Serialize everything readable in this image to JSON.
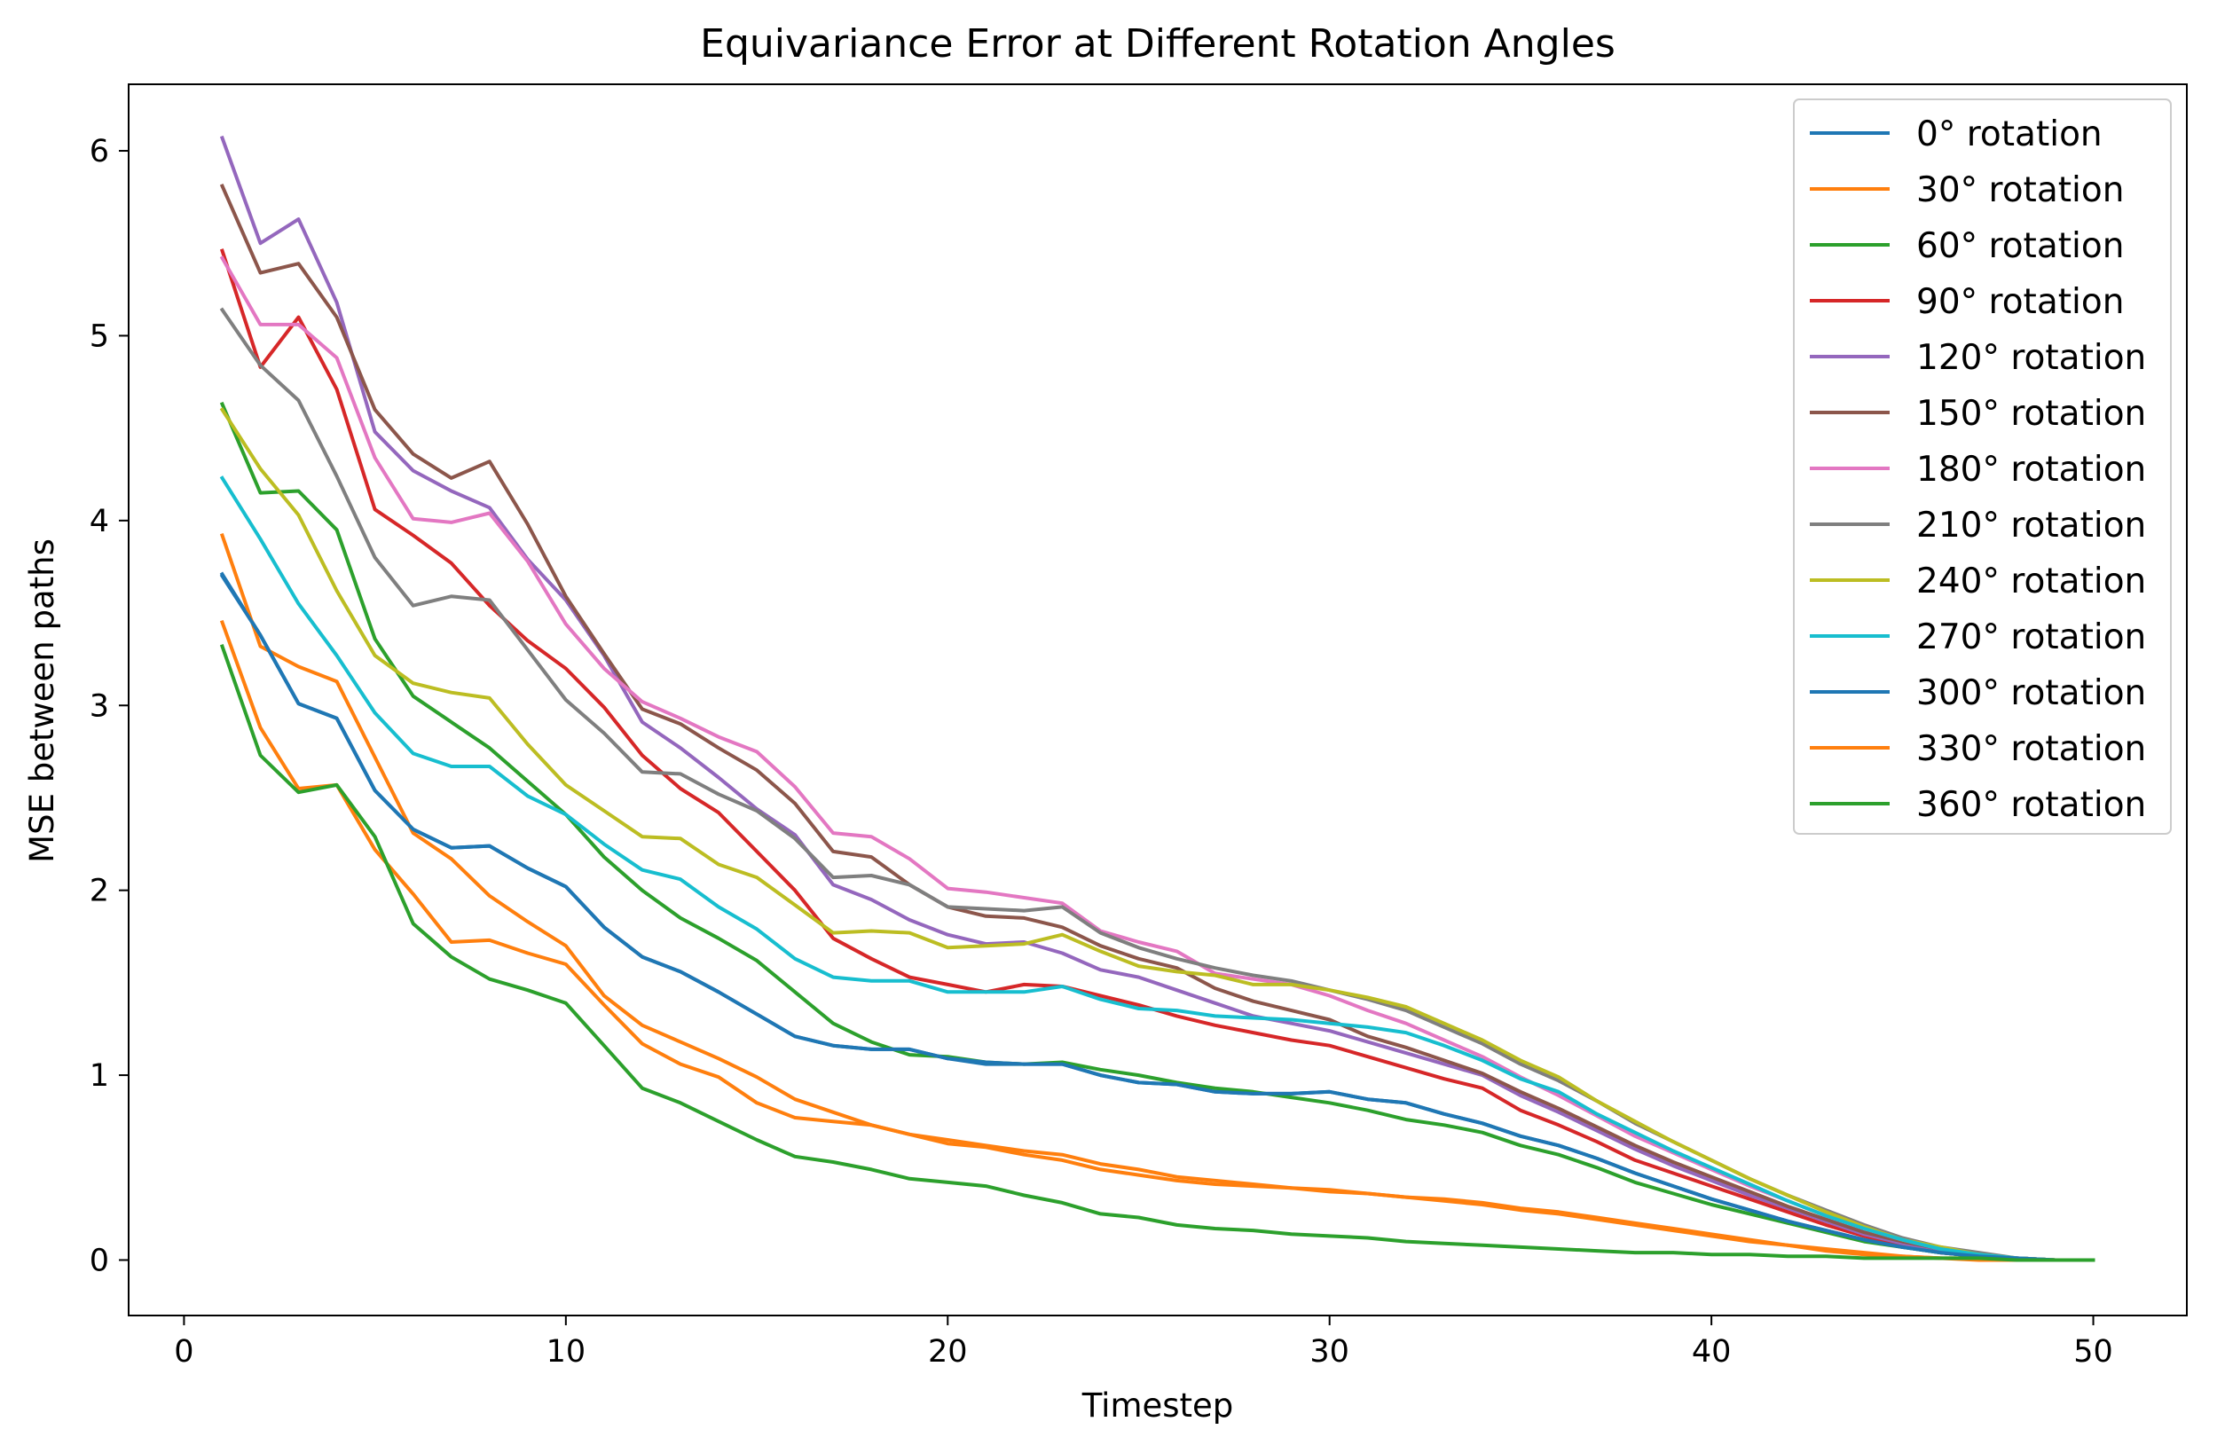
{
  "chart_data": {
    "type": "line",
    "title": "Equivariance Error at Different Rotation Angles",
    "xlabel": "Timestep",
    "ylabel": "MSE between paths",
    "xlim": [
      -1.45,
      52.45
    ],
    "ylim": [
      -0.3,
      6.36
    ],
    "xticks": [
      0,
      10,
      20,
      30,
      40,
      50
    ],
    "yticks": [
      0,
      1,
      2,
      3,
      4,
      5,
      6
    ],
    "grid": false,
    "legend_position": "top-right",
    "x": [
      1,
      2,
      3,
      4,
      5,
      6,
      7,
      8,
      9,
      10,
      11,
      12,
      13,
      14,
      15,
      16,
      17,
      18,
      19,
      20,
      21,
      22,
      23,
      24,
      25,
      26,
      27,
      28,
      29,
      30,
      31,
      32,
      33,
      34,
      35,
      36,
      37,
      38,
      39,
      40,
      41,
      42,
      43,
      44,
      45,
      46,
      47,
      48,
      49,
      50
    ],
    "series": [
      {
        "name": "0° rotation",
        "color": "#1f77b4",
        "values": [
          3.71,
          3.38,
          3.01,
          2.93,
          2.54,
          2.33,
          2.23,
          2.24,
          2.12,
          2.02,
          1.8,
          1.64,
          1.56,
          1.45,
          1.33,
          1.21,
          1.16,
          1.14,
          1.14,
          1.09,
          1.06,
          1.06,
          1.06,
          1.0,
          0.96,
          0.95,
          0.91,
          0.9,
          0.9,
          0.91,
          0.87,
          0.85,
          0.79,
          0.74,
          0.67,
          0.62,
          0.55,
          0.47,
          0.4,
          0.33,
          0.27,
          0.21,
          0.16,
          0.11,
          0.07,
          0.04,
          0.02,
          0.01,
          0.0,
          0.0
        ]
      },
      {
        "name": "30° rotation",
        "color": "#ff7f0e",
        "values": [
          3.92,
          3.32,
          3.21,
          3.13,
          2.72,
          2.31,
          2.17,
          1.97,
          1.83,
          1.7,
          1.43,
          1.27,
          1.18,
          1.09,
          0.99,
          0.87,
          0.8,
          0.73,
          0.68,
          0.65,
          0.62,
          0.59,
          0.57,
          0.52,
          0.49,
          0.45,
          0.43,
          0.41,
          0.39,
          0.38,
          0.36,
          0.34,
          0.33,
          0.31,
          0.28,
          0.26,
          0.23,
          0.2,
          0.17,
          0.14,
          0.11,
          0.08,
          0.06,
          0.04,
          0.02,
          0.01,
          0.01,
          0.0,
          0.0,
          0.0
        ]
      },
      {
        "name": "60° rotation",
        "color": "#2ca02c",
        "values": [
          4.63,
          4.15,
          4.16,
          3.95,
          3.36,
          3.05,
          2.91,
          2.77,
          2.59,
          2.41,
          2.18,
          2.0,
          1.85,
          1.74,
          1.62,
          1.45,
          1.28,
          1.18,
          1.11,
          1.1,
          1.07,
          1.06,
          1.07,
          1.03,
          1.0,
          0.96,
          0.93,
          0.91,
          0.88,
          0.85,
          0.81,
          0.76,
          0.73,
          0.69,
          0.62,
          0.57,
          0.5,
          0.42,
          0.36,
          0.3,
          0.25,
          0.2,
          0.15,
          0.1,
          0.07,
          0.04,
          0.02,
          0.01,
          0.0,
          0.0
        ]
      },
      {
        "name": "90° rotation",
        "color": "#d62728",
        "values": [
          5.46,
          4.83,
          5.1,
          4.71,
          4.06,
          3.92,
          3.77,
          3.54,
          3.35,
          3.2,
          2.99,
          2.73,
          2.55,
          2.42,
          2.21,
          2.0,
          1.74,
          1.63,
          1.53,
          1.49,
          1.45,
          1.49,
          1.48,
          1.43,
          1.38,
          1.32,
          1.27,
          1.23,
          1.19,
          1.16,
          1.1,
          1.04,
          0.98,
          0.93,
          0.81,
          0.73,
          0.64,
          0.54,
          0.47,
          0.4,
          0.33,
          0.26,
          0.19,
          0.13,
          0.08,
          0.04,
          0.02,
          0.01,
          0.0,
          0.0
        ]
      },
      {
        "name": "120° rotation",
        "color": "#9467bd",
        "values": [
          6.07,
          5.5,
          5.63,
          5.18,
          4.48,
          4.27,
          4.16,
          4.07,
          3.79,
          3.57,
          3.27,
          2.91,
          2.77,
          2.61,
          2.44,
          2.3,
          2.03,
          1.95,
          1.84,
          1.76,
          1.71,
          1.72,
          1.66,
          1.57,
          1.53,
          1.46,
          1.39,
          1.32,
          1.28,
          1.24,
          1.18,
          1.12,
          1.06,
          1.0,
          0.89,
          0.8,
          0.7,
          0.6,
          0.51,
          0.43,
          0.35,
          0.28,
          0.21,
          0.14,
          0.09,
          0.05,
          0.02,
          0.01,
          0.0,
          0.0
        ]
      },
      {
        "name": "150° rotation",
        "color": "#8c564b",
        "values": [
          5.81,
          5.34,
          5.39,
          5.1,
          4.6,
          4.36,
          4.23,
          4.32,
          3.98,
          3.59,
          3.28,
          2.98,
          2.9,
          2.77,
          2.65,
          2.47,
          2.21,
          2.18,
          2.03,
          1.91,
          1.86,
          1.85,
          1.8,
          1.7,
          1.63,
          1.58,
          1.47,
          1.4,
          1.35,
          1.3,
          1.21,
          1.15,
          1.08,
          1.01,
          0.91,
          0.82,
          0.72,
          0.62,
          0.53,
          0.45,
          0.37,
          0.29,
          0.22,
          0.15,
          0.1,
          0.06,
          0.03,
          0.01,
          0.0,
          0.0
        ]
      },
      {
        "name": "180° rotation",
        "color": "#e377c2",
        "values": [
          5.42,
          5.06,
          5.06,
          4.88,
          4.34,
          4.01,
          3.99,
          4.04,
          3.78,
          3.44,
          3.2,
          3.02,
          2.93,
          2.83,
          2.75,
          2.56,
          2.31,
          2.29,
          2.17,
          2.01,
          1.99,
          1.96,
          1.93,
          1.78,
          1.72,
          1.67,
          1.55,
          1.52,
          1.49,
          1.43,
          1.35,
          1.28,
          1.19,
          1.1,
          0.99,
          0.89,
          0.78,
          0.67,
          0.58,
          0.49,
          0.4,
          0.32,
          0.24,
          0.17,
          0.11,
          0.06,
          0.03,
          0.01,
          0.0,
          0.0
        ]
      },
      {
        "name": "210° rotation",
        "color": "#7f7f7f",
        "values": [
          5.14,
          4.84,
          4.65,
          4.24,
          3.8,
          3.54,
          3.59,
          3.57,
          3.3,
          3.03,
          2.85,
          2.64,
          2.63,
          2.52,
          2.43,
          2.28,
          2.07,
          2.08,
          2.03,
          1.91,
          1.9,
          1.89,
          1.91,
          1.77,
          1.69,
          1.63,
          1.58,
          1.54,
          1.51,
          1.46,
          1.41,
          1.35,
          1.26,
          1.17,
          1.06,
          0.97,
          0.86,
          0.74,
          0.64,
          0.54,
          0.44,
          0.35,
          0.27,
          0.19,
          0.12,
          0.07,
          0.04,
          0.01,
          0.0,
          0.0
        ]
      },
      {
        "name": "240° rotation",
        "color": "#bcbd22",
        "values": [
          4.6,
          4.28,
          4.03,
          3.62,
          3.27,
          3.12,
          3.07,
          3.04,
          2.79,
          2.57,
          2.43,
          2.29,
          2.28,
          2.14,
          2.07,
          1.92,
          1.77,
          1.78,
          1.77,
          1.69,
          1.7,
          1.71,
          1.76,
          1.67,
          1.59,
          1.56,
          1.54,
          1.49,
          1.49,
          1.46,
          1.42,
          1.37,
          1.28,
          1.19,
          1.08,
          0.99,
          0.86,
          0.75,
          0.64,
          0.54,
          0.44,
          0.35,
          0.26,
          0.18,
          0.11,
          0.07,
          0.03,
          0.01,
          0.0,
          0.0
        ]
      },
      {
        "name": "270° rotation",
        "color": "#17becf",
        "values": [
          4.23,
          3.9,
          3.55,
          3.27,
          2.96,
          2.74,
          2.67,
          2.67,
          2.51,
          2.41,
          2.25,
          2.11,
          2.06,
          1.91,
          1.79,
          1.63,
          1.53,
          1.51,
          1.51,
          1.45,
          1.45,
          1.45,
          1.48,
          1.41,
          1.36,
          1.35,
          1.32,
          1.31,
          1.3,
          1.28,
          1.26,
          1.23,
          1.16,
          1.08,
          0.98,
          0.91,
          0.79,
          0.69,
          0.59,
          0.5,
          0.41,
          0.32,
          0.24,
          0.17,
          0.11,
          0.06,
          0.03,
          0.01,
          0.0,
          0.0
        ]
      },
      {
        "name": "300° rotation",
        "color": "#1f77b4",
        "values": [
          3.7,
          3.38,
          3.01,
          2.93,
          2.54,
          2.33,
          2.23,
          2.24,
          2.12,
          2.02,
          1.8,
          1.64,
          1.56,
          1.45,
          1.33,
          1.21,
          1.16,
          1.14,
          1.14,
          1.09,
          1.07,
          1.06,
          1.06,
          1.0,
          0.96,
          0.95,
          0.91,
          0.9,
          0.9,
          0.91,
          0.87,
          0.85,
          0.79,
          0.74,
          0.67,
          0.62,
          0.55,
          0.47,
          0.4,
          0.33,
          0.27,
          0.21,
          0.16,
          0.11,
          0.07,
          0.04,
          0.02,
          0.01,
          0.0,
          0.0
        ]
      },
      {
        "name": "330° rotation",
        "color": "#ff7f0e",
        "values": [
          3.45,
          2.88,
          2.55,
          2.57,
          2.22,
          1.98,
          1.72,
          1.73,
          1.66,
          1.6,
          1.38,
          1.17,
          1.06,
          0.99,
          0.85,
          0.77,
          0.75,
          0.73,
          0.68,
          0.63,
          0.61,
          0.57,
          0.54,
          0.49,
          0.46,
          0.43,
          0.41,
          0.4,
          0.39,
          0.37,
          0.36,
          0.34,
          0.32,
          0.3,
          0.27,
          0.25,
          0.22,
          0.19,
          0.16,
          0.13,
          0.1,
          0.08,
          0.05,
          0.03,
          0.02,
          0.01,
          0.0,
          0.0,
          0.0,
          0.0
        ]
      },
      {
        "name": "360° rotation",
        "color": "#2ca02c",
        "values": [
          3.32,
          2.73,
          2.53,
          2.57,
          2.29,
          1.82,
          1.64,
          1.52,
          1.46,
          1.39,
          1.16,
          0.93,
          0.85,
          0.75,
          0.65,
          0.56,
          0.53,
          0.49,
          0.44,
          0.42,
          0.4,
          0.35,
          0.31,
          0.25,
          0.23,
          0.19,
          0.17,
          0.16,
          0.14,
          0.13,
          0.12,
          0.1,
          0.09,
          0.08,
          0.07,
          0.06,
          0.05,
          0.04,
          0.04,
          0.03,
          0.03,
          0.02,
          0.02,
          0.01,
          0.01,
          0.01,
          0.01,
          0.0,
          0.0,
          0.0
        ]
      }
    ]
  }
}
